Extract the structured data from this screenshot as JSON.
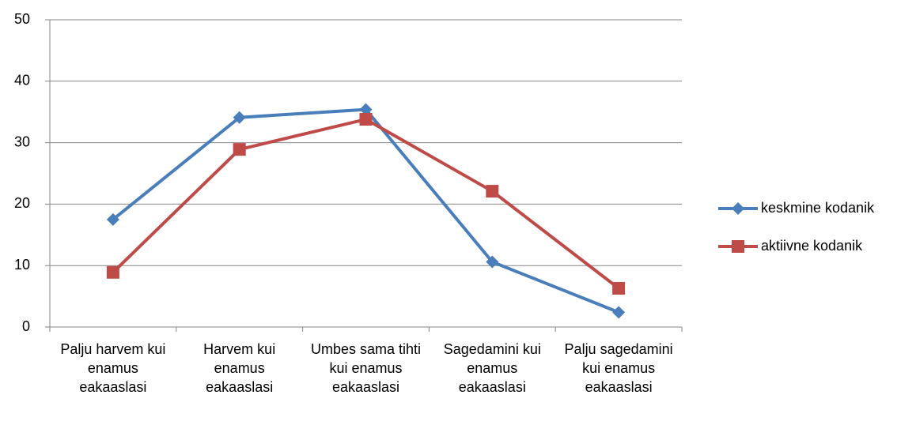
{
  "chart_data": {
    "type": "line",
    "categories": [
      "Palju harvem kui enamus eakaaslasi",
      "Harvem kui enamus eakaaslasi",
      "Umbes sama tihti kui enamus eakaaslasi",
      "Sagedamini kui enamus eakaaslasi",
      "Palju sagedamini kui enamus eakaaslasi"
    ],
    "series": [
      {
        "name": "keskmine kodanik",
        "color": "#4a7ebb",
        "marker": "diamond",
        "values": [
          17.5,
          34.1,
          35.4,
          10.6,
          2.4
        ]
      },
      {
        "name": "aktiivne kodanik",
        "color": "#be4b48",
        "marker": "square",
        "values": [
          8.9,
          28.9,
          33.8,
          22.1,
          6.3
        ]
      }
    ],
    "ylim": [
      0,
      50
    ],
    "yticks": [
      0,
      10,
      20,
      30,
      40,
      50
    ],
    "grid": true,
    "legend": "right"
  }
}
